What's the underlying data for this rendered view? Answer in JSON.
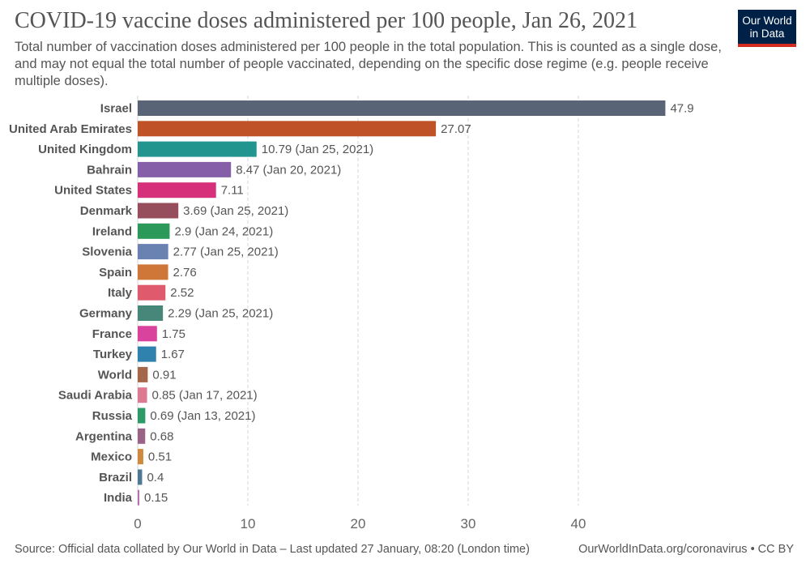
{
  "header": {
    "title": "COVID-19 vaccine doses administered per 100 people, Jan 26, 2021",
    "subtitle": "Total number of vaccination doses administered per 100 people in the total population. This is counted as a single dose, and may not equal the total number of people vaccinated, depending on the specific dose regime (e.g. people receive multiple doses).",
    "logo_line1": "Our World",
    "logo_line2": "in Data"
  },
  "footer": {
    "source": "Source: Official data collated by Our World in Data – Last updated 27 January, 08:20 (London time)",
    "credit": "OurWorldInData.org/coronavirus • CC BY"
  },
  "colors": {
    "logo_bg": "#002147",
    "logo_accent": "#d42b21"
  },
  "chart_data": {
    "type": "bar",
    "orientation": "horizontal",
    "title": "COVID-19 vaccine doses administered per 100 people, Jan 26, 2021",
    "xlim": [
      0,
      50
    ],
    "xticks": [
      0,
      10,
      20,
      30,
      40
    ],
    "grid": true,
    "bars": [
      {
        "label": "Israel",
        "value": 47.9,
        "value_label": "47.9",
        "color": "#5a6477"
      },
      {
        "label": "United Arab Emirates",
        "value": 27.07,
        "value_label": "27.07",
        "color": "#c05228"
      },
      {
        "label": "United Kingdom",
        "value": 10.79,
        "value_label": "10.79 (Jan 25, 2021)",
        "color": "#22958e"
      },
      {
        "label": "Bahrain",
        "value": 8.47,
        "value_label": "8.47 (Jan 20, 2021)",
        "color": "#8560a8"
      },
      {
        "label": "United States",
        "value": 7.11,
        "value_label": "7.11",
        "color": "#d7307a"
      },
      {
        "label": "Denmark",
        "value": 3.69,
        "value_label": "3.69 (Jan 25, 2021)",
        "color": "#974e5c"
      },
      {
        "label": "Ireland",
        "value": 2.9,
        "value_label": "2.9 (Jan 24, 2021)",
        "color": "#2a9959"
      },
      {
        "label": "Slovenia",
        "value": 2.77,
        "value_label": "2.77 (Jan 25, 2021)",
        "color": "#6a82b2"
      },
      {
        "label": "Spain",
        "value": 2.76,
        "value_label": "2.76",
        "color": "#ce7738"
      },
      {
        "label": "Italy",
        "value": 2.52,
        "value_label": "2.52",
        "color": "#de5a6c"
      },
      {
        "label": "Germany",
        "value": 2.29,
        "value_label": "2.29 (Jan 25, 2021)",
        "color": "#46877a"
      },
      {
        "label": "France",
        "value": 1.75,
        "value_label": "1.75",
        "color": "#d9439e"
      },
      {
        "label": "Turkey",
        "value": 1.67,
        "value_label": "1.67",
        "color": "#2f82ad"
      },
      {
        "label": "World",
        "value": 0.91,
        "value_label": "0.91",
        "color": "#a4674a"
      },
      {
        "label": "Saudi Arabia",
        "value": 0.85,
        "value_label": "0.85 (Jan 17, 2021)",
        "color": "#db7a90"
      },
      {
        "label": "Russia",
        "value": 0.69,
        "value_label": "0.69 (Jan 13, 2021)",
        "color": "#2c9a69"
      },
      {
        "label": "Argentina",
        "value": 0.68,
        "value_label": "0.68",
        "color": "#996388"
      },
      {
        "label": "Mexico",
        "value": 0.51,
        "value_label": "0.51",
        "color": "#d08a3e"
      },
      {
        "label": "Brazil",
        "value": 0.4,
        "value_label": "0.4",
        "color": "#4f7892"
      },
      {
        "label": "India",
        "value": 0.15,
        "value_label": "0.15",
        "color": "#b570b0"
      }
    ]
  }
}
